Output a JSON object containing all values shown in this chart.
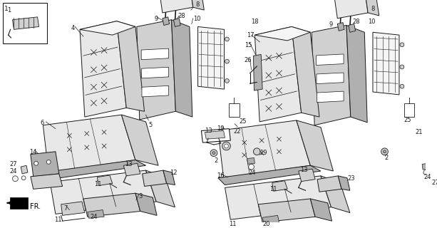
{
  "bg_color": "#ffffff",
  "line_color": "#1a1a1a",
  "fill_light": "#e8e8e8",
  "fill_mid": "#d0d0d0",
  "fill_dark": "#b0b0b0",
  "fill_white": "#f5f5f5",
  "fig_width": 6.13,
  "fig_height": 3.2,
  "dpi": 100
}
